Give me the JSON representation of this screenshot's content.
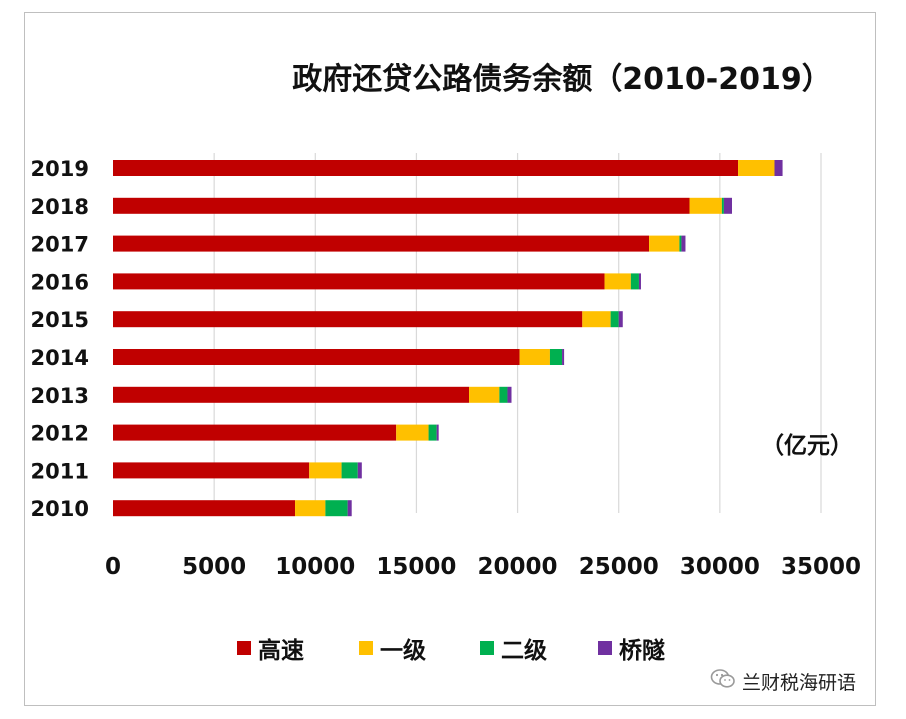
{
  "chart_data": {
    "type": "bar",
    "orientation": "horizontal",
    "stacked": true,
    "title": "政府还贷公路债务余额（2010-2019）",
    "unit_label": "（亿元）",
    "categories": [
      "2010",
      "2011",
      "2012",
      "2013",
      "2014",
      "2015",
      "2016",
      "2017",
      "2018",
      "2019"
    ],
    "series": [
      {
        "name": "高速",
        "color": "#c00000",
        "values": [
          9000,
          9700,
          14000,
          17600,
          20100,
          23200,
          24300,
          26500,
          28500,
          30900
        ]
      },
      {
        "name": "一级",
        "color": "#ffc000",
        "values": [
          1500,
          1600,
          1600,
          1500,
          1500,
          1400,
          1300,
          1500,
          1600,
          1800
        ]
      },
      {
        "name": "二级",
        "color": "#00b050",
        "values": [
          1100,
          800,
          400,
          400,
          600,
          400,
          400,
          100,
          100,
          0
        ]
      },
      {
        "name": "桥隧",
        "color": "#7030a0",
        "values": [
          200,
          200,
          100,
          200,
          100,
          200,
          100,
          200,
          400,
          400
        ]
      }
    ],
    "xlim": [
      0,
      35000
    ],
    "xticks": [
      "0",
      "5000",
      "10000",
      "15000",
      "20000",
      "25000",
      "30000",
      "35000"
    ],
    "grid": "vertical",
    "legend_position": "bottom"
  },
  "watermark": {
    "icon": "wechat-icon",
    "text": "兰财税海研语"
  }
}
